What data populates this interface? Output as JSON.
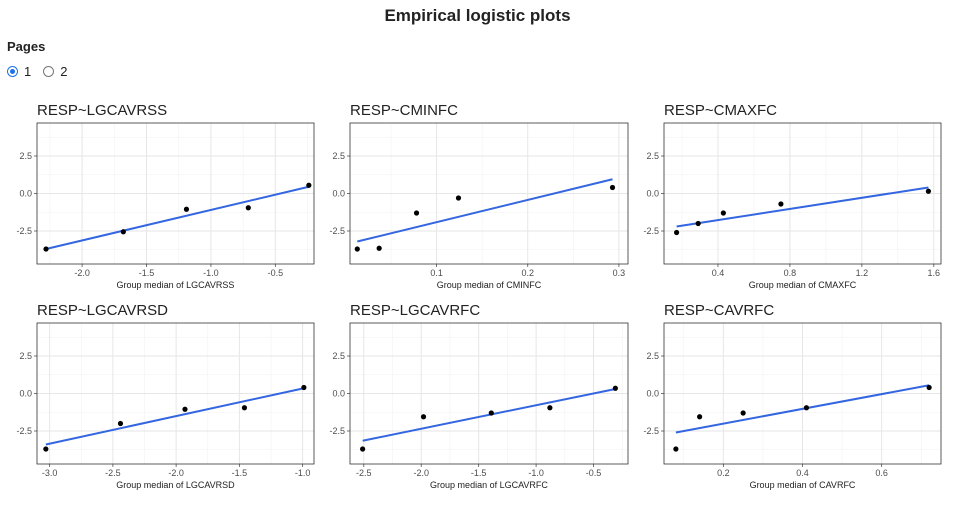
{
  "title": "Empirical logistic plots",
  "pages": {
    "label": "Pages",
    "options": [
      {
        "label": "1",
        "selected": true
      },
      {
        "label": "2",
        "selected": false
      }
    ]
  },
  "colors": {
    "line": "#3366e0",
    "point": "#000000",
    "radio_accent": "#1a73e8"
  },
  "chart_data": [
    {
      "type": "scatter",
      "title": "RESP~LGCAVRSS",
      "xlabel": "Group median of LGCAVRSS",
      "ylabel": "",
      "xlim": [
        -2.35,
        -0.2
      ],
      "ylim": [
        -4.7,
        4.7
      ],
      "xticks": [
        -2.0,
        -1.5,
        -1.0,
        -0.5
      ],
      "xticklabels": [
        "-2.0",
        "-1.5",
        "-1.0",
        "-0.5"
      ],
      "yticks": [
        -2.5,
        0.0,
        2.5
      ],
      "yticklabels": [
        "-2.5",
        "0.0",
        "2.5"
      ],
      "points": {
        "x": [
          -2.28,
          -1.68,
          -1.19,
          -0.71,
          -0.24
        ],
        "y": [
          -3.7,
          -2.55,
          -1.05,
          -0.95,
          0.55
        ]
      },
      "fit": {
        "x": [
          -2.28,
          -0.24
        ],
        "y": [
          -3.7,
          0.45
        ]
      }
    },
    {
      "type": "scatter",
      "title": "RESP~CMINFC",
      "xlabel": "Group median of CMINFC",
      "ylabel": "",
      "xlim": [
        0.005,
        0.31
      ],
      "ylim": [
        -4.7,
        4.7
      ],
      "xticks": [
        0.1,
        0.2,
        0.3
      ],
      "xticklabels": [
        "0.1",
        "0.2",
        "0.3"
      ],
      "yticks": [
        -2.5,
        0.0,
        2.5
      ],
      "yticklabels": [
        "-2.5",
        "0.0",
        "2.5"
      ],
      "points": {
        "x": [
          0.013,
          0.037,
          0.078,
          0.124,
          0.293
        ],
        "y": [
          -3.7,
          -3.65,
          -1.3,
          -0.3,
          0.4
        ]
      },
      "fit": {
        "x": [
          0.013,
          0.293
        ],
        "y": [
          -3.2,
          0.95
        ]
      }
    },
    {
      "type": "scatter",
      "title": "RESP~CMAXFC",
      "xlabel": "Group median of CMAXFC",
      "ylabel": "",
      "xlim": [
        0.1,
        1.64
      ],
      "ylim": [
        -4.7,
        4.7
      ],
      "xticks": [
        0.4,
        0.8,
        1.2,
        1.6
      ],
      "xticklabels": [
        "0.4",
        "0.8",
        "1.2",
        "1.6"
      ],
      "yticks": [
        -2.5,
        0.0,
        2.5
      ],
      "yticklabels": [
        "-2.5",
        "0.0",
        "2.5"
      ],
      "points": {
        "x": [
          0.17,
          0.29,
          0.43,
          0.75,
          1.57
        ],
        "y": [
          -2.6,
          -2.0,
          -1.3,
          -0.7,
          0.15
        ]
      },
      "fit": {
        "x": [
          0.17,
          1.57
        ],
        "y": [
          -2.2,
          0.4
        ]
      }
    },
    {
      "type": "scatter",
      "title": "RESP~LGCAVRSD",
      "xlabel": "Group median of LGCAVRSD",
      "ylabel": "",
      "xlim": [
        -3.1,
        -0.91
      ],
      "ylim": [
        -4.7,
        4.7
      ],
      "xticks": [
        -3.0,
        -2.5,
        -2.0,
        -1.5,
        -1.0
      ],
      "xticklabels": [
        "-3.0",
        "-2.5",
        "-2.0",
        "-1.5",
        "-1.0"
      ],
      "yticks": [
        -2.5,
        0.0,
        2.5
      ],
      "yticklabels": [
        "-2.5",
        "0.0",
        "2.5"
      ],
      "points": {
        "x": [
          -3.03,
          -2.44,
          -1.93,
          -1.46,
          -0.99
        ],
        "y": [
          -3.7,
          -2.0,
          -1.05,
          -0.95,
          0.4
        ]
      },
      "fit": {
        "x": [
          -3.03,
          -0.99
        ],
        "y": [
          -3.4,
          0.35
        ]
      }
    },
    {
      "type": "scatter",
      "title": "RESP~LGCAVRFC",
      "xlabel": "Group median of LGCAVRFC",
      "ylabel": "",
      "xlim": [
        -2.62,
        -0.2
      ],
      "ylim": [
        -4.7,
        4.7
      ],
      "xticks": [
        -2.5,
        -2.0,
        -1.5,
        -1.0,
        -0.5
      ],
      "xticklabels": [
        "-2.5",
        "-2.0",
        "-1.5",
        "-1.0",
        "-0.5"
      ],
      "yticks": [
        -2.5,
        0.0,
        2.5
      ],
      "yticklabels": [
        "-2.5",
        "0.0",
        "2.5"
      ],
      "points": {
        "x": [
          -2.51,
          -1.98,
          -1.39,
          -0.88,
          -0.31
        ],
        "y": [
          -3.7,
          -1.55,
          -1.3,
          -0.95,
          0.35
        ]
      },
      "fit": {
        "x": [
          -2.51,
          -0.31
        ],
        "y": [
          -3.15,
          0.3
        ]
      }
    },
    {
      "type": "scatter",
      "title": "RESP~CAVRFC",
      "xlabel": "Group median of CAVRFC",
      "ylabel": "",
      "xlim": [
        0.05,
        0.75
      ],
      "ylim": [
        -4.7,
        4.7
      ],
      "xticks": [
        0.2,
        0.4,
        0.6
      ],
      "xticklabels": [
        "0.2",
        "0.4",
        "0.6"
      ],
      "yticks": [
        -2.5,
        0.0,
        2.5
      ],
      "yticklabels": [
        "-2.5",
        "0.0",
        "2.5"
      ],
      "points": {
        "x": [
          0.08,
          0.14,
          0.25,
          0.41,
          0.72
        ],
        "y": [
          -3.7,
          -1.55,
          -1.3,
          -0.95,
          0.4
        ]
      },
      "fit": {
        "x": [
          0.08,
          0.72
        ],
        "y": [
          -2.6,
          0.55
        ]
      }
    }
  ]
}
